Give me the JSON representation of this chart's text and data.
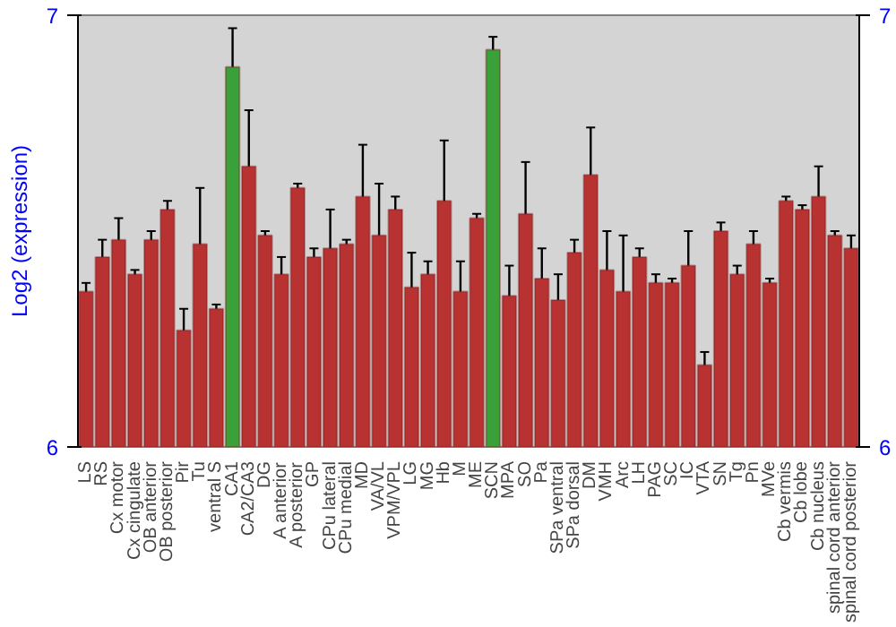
{
  "chart_data": {
    "type": "bar",
    "ylabel": "Log2 (expression)",
    "categories": [
      "LS",
      "RS",
      "Cx motor",
      "Cx cingulate",
      "OB anterior",
      "OB posterior",
      "Pir",
      "Tu",
      "ventral S",
      "CA1",
      "CA2/CA3",
      "DG",
      "A anterior",
      "A posterior",
      "GP",
      "CPu lateral",
      "CPu medial",
      "MD",
      "VA/VL",
      "VPM/VPL",
      "LG",
      "MG",
      "Hb",
      "M",
      "ME",
      "SCN",
      "MPA",
      "SO",
      "Pa",
      "SPa ventral",
      "SPa dorsal",
      "DM",
      "VMH",
      "Arc",
      "LH",
      "PAG",
      "SC",
      "IC",
      "VTA",
      "SN",
      "Tg",
      "Pn",
      "MVe",
      "Cb vermis",
      "Cb lobe",
      "Cb nucleus",
      "spinal cord anterior",
      "spinal cord posterior"
    ],
    "values": [
      6.36,
      6.44,
      6.48,
      6.4,
      6.48,
      6.55,
      6.27,
      6.47,
      6.32,
      6.88,
      6.65,
      6.49,
      6.4,
      6.6,
      6.44,
      6.46,
      6.47,
      6.58,
      6.49,
      6.55,
      6.37,
      6.4,
      6.57,
      6.36,
      6.53,
      6.92,
      6.35,
      6.54,
      6.39,
      6.34,
      6.45,
      6.63,
      6.41,
      6.36,
      6.44,
      6.38,
      6.38,
      6.42,
      6.19,
      6.5,
      6.4,
      6.47,
      6.38,
      6.57,
      6.55,
      6.58,
      6.49,
      6.46
    ],
    "errors": [
      0.02,
      0.04,
      0.05,
      0.01,
      0.02,
      0.02,
      0.05,
      0.13,
      0.01,
      0.09,
      0.13,
      0.01,
      0.04,
      0.01,
      0.02,
      0.09,
      0.01,
      0.12,
      0.12,
      0.03,
      0.08,
      0.03,
      0.14,
      0.07,
      0.01,
      0.03,
      0.07,
      0.12,
      0.07,
      0.06,
      0.03,
      0.11,
      0.09,
      0.13,
      0.02,
      0.02,
      0.01,
      0.08,
      0.03,
      0.02,
      0.02,
      0.03,
      0.01,
      0.01,
      0.01,
      0.07,
      0.01,
      0.03
    ],
    "colors": [
      "#b83232",
      "#b83232",
      "#b83232",
      "#b83232",
      "#b83232",
      "#b83232",
      "#b83232",
      "#b83232",
      "#b83232",
      "#3aa13a",
      "#b83232",
      "#b83232",
      "#b83232",
      "#b83232",
      "#b83232",
      "#b83232",
      "#b83232",
      "#b83232",
      "#b83232",
      "#b83232",
      "#b83232",
      "#b83232",
      "#b83232",
      "#b83232",
      "#b83232",
      "#3aa13a",
      "#b83232",
      "#b83232",
      "#b83232",
      "#b83232",
      "#b83232",
      "#b83232",
      "#b83232",
      "#b83232",
      "#b83232",
      "#b83232",
      "#b83232",
      "#b83232",
      "#b83232",
      "#b83232",
      "#b83232",
      "#b83232",
      "#b83232",
      "#b83232",
      "#b83232",
      "#b83232",
      "#b83232",
      "#b83232"
    ],
    "ylim": [
      6,
      7
    ],
    "yticks": [
      6,
      7
    ],
    "y2lim": [
      6,
      7
    ],
    "y2ticks": [
      6,
      7
    ],
    "grid": false
  }
}
